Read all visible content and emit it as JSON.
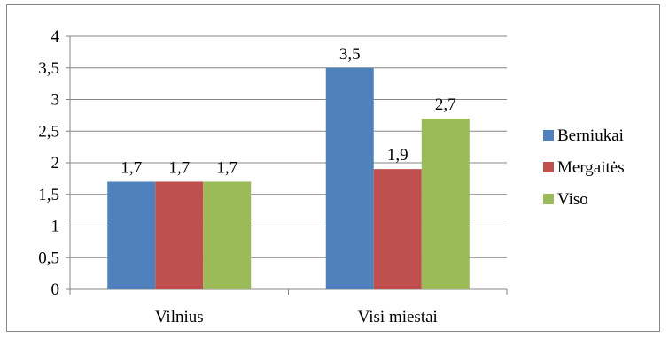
{
  "chart_data": {
    "type": "bar",
    "categories": [
      "Vilnius",
      "Visi miestai"
    ],
    "series": [
      {
        "name": "Berniukai",
        "values": [
          1.7,
          3.5
        ],
        "labels": [
          "1,7",
          "3,5"
        ],
        "color": "#4F81BD"
      },
      {
        "name": "Mergaitės",
        "values": [
          1.7,
          1.9
        ],
        "labels": [
          "1,7",
          "1,9"
        ],
        "color": "#C0504D"
      },
      {
        "name": "Viso",
        "values": [
          1.7,
          2.7
        ],
        "labels": [
          "1,7",
          "2,7"
        ],
        "color": "#9BBB59"
      }
    ],
    "y_ticks": [
      0,
      0.5,
      1,
      1.5,
      2,
      2.5,
      3,
      3.5,
      4
    ],
    "y_tick_labels": [
      "0",
      "0,5",
      "1",
      "1,5",
      "2",
      "2,5",
      "3",
      "3,5",
      "4"
    ],
    "ylim": [
      0,
      4
    ],
    "title": "",
    "xlabel": "",
    "ylabel": "",
    "grid": true,
    "legend_position": "right"
  }
}
